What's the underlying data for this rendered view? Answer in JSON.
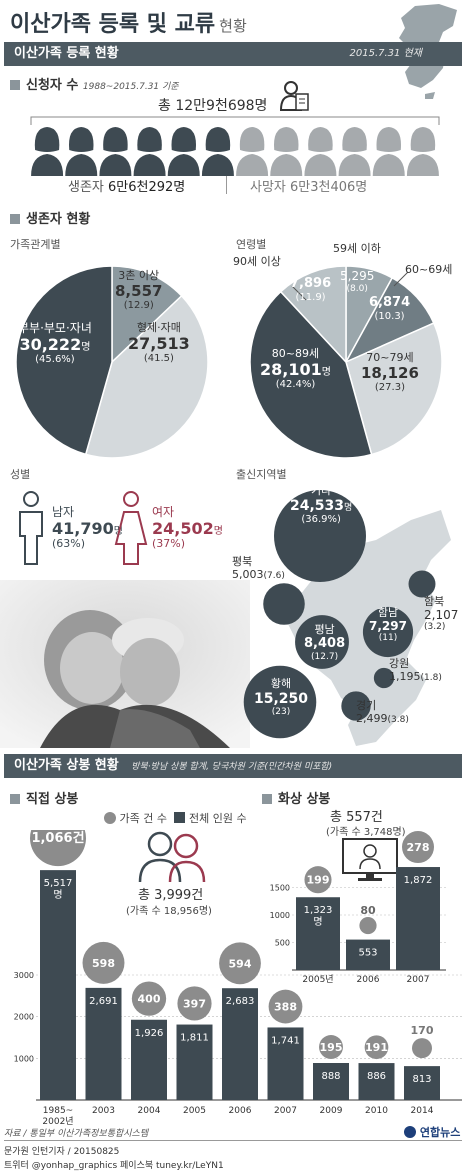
{
  "header": {
    "title": "이산가족 등록 및 교류",
    "subtitle": "현황"
  },
  "registration": {
    "bar_title": "이산가족 등록 현황",
    "date": "2015.7.31 현재",
    "applicants_title": "신청자 수",
    "applicants_note": "1988~2015.7.31 기준",
    "total_prefix": "총 ",
    "total": "12만9천698명",
    "alive_label": "생존자 ",
    "alive_value": "6만6천292명",
    "dead_label": "사망자 ",
    "dead_value": "6만3천406명",
    "alive_icons": 6,
    "dead_icons": 6
  },
  "survivors": {
    "title": "생존자 현황",
    "family_title": "가족관계별",
    "age_title": "연령별",
    "gender_title": "성별",
    "region_title": "출신지역별",
    "male_label": "남자",
    "male_value": "41,790",
    "male_unit": "명",
    "male_pct": "(63%)",
    "female_label": "여자",
    "female_value": "24,502",
    "female_unit": "명",
    "female_pct": "(37%)"
  },
  "family_labels": [
    {
      "name": "3촌 이상",
      "value": "8,557",
      "pct": "(12.9)"
    },
    {
      "name": "형제·자매",
      "value": "27,513",
      "pct": "(41.5)"
    },
    {
      "name": "부부·부모·자녀",
      "value": "30,222",
      "unit": "명",
      "pct": "(45.6%)"
    }
  ],
  "age_labels": [
    {
      "name": "59세 이하",
      "value": "5,295",
      "pct": "(8.0)"
    },
    {
      "name": "60~69세",
      "value": "6,874",
      "pct": "(10.3)"
    },
    {
      "name": "70~79세",
      "value": "18,126",
      "pct": "(27.3)"
    },
    {
      "name": "80~89세",
      "value": "28,101",
      "unit": "명",
      "pct": "(42.4%)"
    },
    {
      "name": "90세 이상",
      "value": "7,896",
      "pct": "(11.9)"
    }
  ],
  "regions": [
    {
      "name": "기타",
      "value": "24,533",
      "unit": "명",
      "pct": "(36.9%)"
    },
    {
      "name": "평북",
      "value": "5,003",
      "pct": "(7.6)"
    },
    {
      "name": "함북",
      "value": "2,107",
      "pct": "(3.2)"
    },
    {
      "name": "함남",
      "value": "7,297",
      "pct": "(11)"
    },
    {
      "name": "평남",
      "value": "8,408",
      "pct": "(12.7)"
    },
    {
      "name": "강원",
      "value": "1,195",
      "pct": "(1.8)"
    },
    {
      "name": "황해",
      "value": "15,250",
      "pct": "(23)"
    },
    {
      "name": "경기",
      "value": "2,499",
      "pct": "(3.8)"
    }
  ],
  "reunion": {
    "bar_title": "이산가족 상봉 현황",
    "bar_note": "방북·방남 상봉 합계, 당국차원 기준(민간차원 미포함)",
    "direct_title": "직접 상봉",
    "video_title": "화상 상봉",
    "legend_cases": "가족 건 수",
    "legend_people": "전체 인원 수",
    "direct_total": "총 3,999건",
    "direct_families": "(가족 수 18,956명)",
    "video_total": "총 557건",
    "video_families": "(가족 수 3,748명)"
  },
  "chart_data": [
    {
      "type": "pie",
      "title": "가족관계별",
      "categories": [
        "3촌 이상",
        "형제·자매",
        "부부·부모·자녀"
      ],
      "values": [
        8557,
        27513,
        30222
      ],
      "percent": [
        12.9,
        41.5,
        45.6
      ],
      "colors": [
        "#8c999f",
        "#d4d9dc",
        "#3e4a52"
      ]
    },
    {
      "type": "pie",
      "title": "연령별",
      "categories": [
        "59세 이하",
        "60~69세",
        "70~79세",
        "80~89세",
        "90세 이상"
      ],
      "values": [
        5295,
        6874,
        18126,
        28101,
        7896
      ],
      "percent": [
        8.0,
        10.3,
        27.3,
        42.4,
        11.9
      ],
      "colors": [
        "#9aa6ab",
        "#707d84",
        "#d4d9dc",
        "#3e4a52",
        "#b9c2c6"
      ]
    },
    {
      "type": "bar",
      "title": "직접 상봉",
      "categories": [
        "1985~\n2002년",
        "2003",
        "2004",
        "2005",
        "2006",
        "2007",
        "2009",
        "2010",
        "2014"
      ],
      "series": [
        {
          "name": "전체 인원 수",
          "values": [
            5517,
            2691,
            1926,
            1811,
            2683,
            1741,
            888,
            886,
            813
          ]
        },
        {
          "name": "가족 건 수",
          "values": [
            1066,
            598,
            400,
            397,
            594,
            388,
            195,
            191,
            170
          ]
        }
      ],
      "ylim": [
        0,
        6000
      ],
      "yticks": [
        1000,
        2000,
        3000
      ],
      "value_labels": [
        "5,517\n명",
        "2,691",
        "1,926",
        "1,811",
        "2,683",
        "1,741",
        "888",
        "886",
        "813"
      ],
      "case_labels": [
        "1,066건",
        "598",
        "400",
        "397",
        "594",
        "388",
        "195",
        "191",
        "170"
      ]
    },
    {
      "type": "bar",
      "title": "화상 상봉",
      "categories": [
        "2005년",
        "2006",
        "2007"
      ],
      "series": [
        {
          "name": "전체 인원 수",
          "values": [
            1323,
            553,
            1872
          ]
        },
        {
          "name": "가족 건 수",
          "values": [
            199,
            80,
            278
          ]
        }
      ],
      "ylim": [
        0,
        2000
      ],
      "yticks": [
        500,
        1000,
        1500
      ],
      "value_labels": [
        "1,323\n명",
        "553",
        "1,872"
      ],
      "case_labels": [
        "199",
        "80",
        "278"
      ]
    }
  ],
  "footer": {
    "source": "자료 / 통일부 이산가족정보통합시스템",
    "credit": "문가원 인턴기자 / 20150825",
    "sns": "트위터 @yonhap_graphics  페이스북 tuney.kr/LeYN1",
    "logo": "연합뉴스"
  },
  "colors": {
    "dark": "#3e4a52",
    "mid": "#8c999f",
    "light": "#d4d9dc",
    "female": "#9b3a4f",
    "header": "#4d5a62"
  }
}
